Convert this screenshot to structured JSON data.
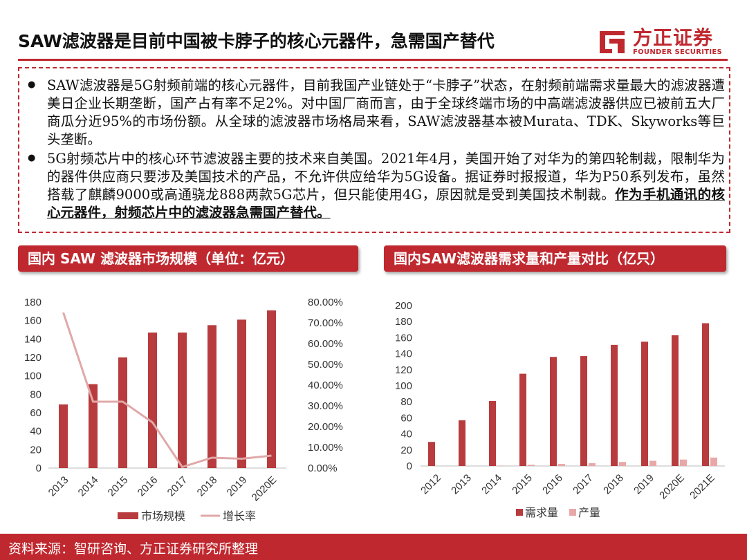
{
  "header": {
    "title": "SAW滤波器是目前中国被卡脖子的核心元器件，急需国产替代",
    "logo_cn": "方正证券",
    "logo_en": "FOUNDER SECURITIES",
    "brand_color": "#c0282f"
  },
  "summary": {
    "bullet_icon": "filled-circle",
    "p1": "SAW滤波器是5G射频前端的核心元器件，目前我国产业链处于“卡脖子”状态，在射频前端需求量最大的滤波器遭美日企业长期垄断，国产占有率不足2%。对中国厂商而言，由于全球终端市场的中高端滤波器供应已被前五大厂商瓜分近95%的市场份额。从全球的滤波器市场格局来看，SAW滤波器基本被Murata、TDK、Skyworks等巨头垄断。",
    "p2_plain": "5G射频芯片中的核心环节滤波器主要的技术来自美国。2021年4月，美国开始了对华为的第四轮制裁，限制华为的器件供应商只要涉及美国技术的产品，不允许供应给华为5G设备。据证券时报报道，华为P50系列发布，虽然搭载了麒麟9000或高通骁龙888两款5G芯片，但只能使用4G，原因就是受到美国技术制裁。",
    "p2_highlight": "作为手机通讯的核心元器件，射频芯片中的滤波器急需国产替代。"
  },
  "panels": {
    "left_title": "国内 SAW 滤波器市场规模（单位：亿元）",
    "right_title": "国内SAW滤波器需求量和产量对比（亿只）"
  },
  "chart_data": [
    {
      "type": "bar+line",
      "categories": [
        "2013",
        "2014",
        "2015",
        "2016",
        "2017",
        "2018",
        "2019",
        "2020E"
      ],
      "series": [
        {
          "name": "市场规模",
          "type": "bar",
          "axis": "left",
          "color": "#b83b3d",
          "values": [
            69,
            91,
            120,
            147,
            147,
            155,
            161,
            171
          ]
        },
        {
          "name": "增长率",
          "type": "line",
          "axis": "right",
          "color": "#e0a8a8",
          "values": [
            0.75,
            0.32,
            0.32,
            0.22,
            0.005,
            0.05,
            0.045,
            0.06
          ]
        }
      ],
      "left_axis": {
        "min": 0,
        "max": 180,
        "step": 20,
        "ticks": [
          "0",
          "20",
          "40",
          "60",
          "80",
          "100",
          "120",
          "140",
          "160",
          "180"
        ]
      },
      "right_axis": {
        "min": 0,
        "max": 0.8,
        "step": 0.1,
        "ticks": [
          "0.00%",
          "10.00%",
          "20.00%",
          "30.00%",
          "40.00%",
          "50.00%",
          "60.00%",
          "70.00%",
          "80.00%"
        ]
      },
      "legend_position": "bottom",
      "grid": false
    },
    {
      "type": "bar",
      "categories": [
        "2012",
        "2013",
        "2014",
        "2015",
        "2016",
        "2017",
        "2018",
        "2019",
        "2020E",
        "2021E"
      ],
      "series": [
        {
          "name": "需求量",
          "color": "#b83b3d",
          "values": [
            30,
            57,
            81,
            115,
            136,
            137,
            151,
            155,
            163,
            178
          ]
        },
        {
          "name": "产量",
          "color": "#e8a8a8",
          "values": [
            0,
            0,
            0.5,
            1.5,
            2.5,
            3.5,
            5,
            6.5,
            8,
            10.5
          ]
        }
      ],
      "y_axis": {
        "min": 0,
        "max": 200,
        "step": 20,
        "ticks": [
          "0",
          "20",
          "40",
          "60",
          "80",
          "100",
          "120",
          "140",
          "160",
          "180",
          "200"
        ]
      },
      "legend_position": "bottom",
      "grid": false
    }
  ],
  "footer": {
    "source": "资料来源：智研咨询、方正证券研究所整理"
  }
}
